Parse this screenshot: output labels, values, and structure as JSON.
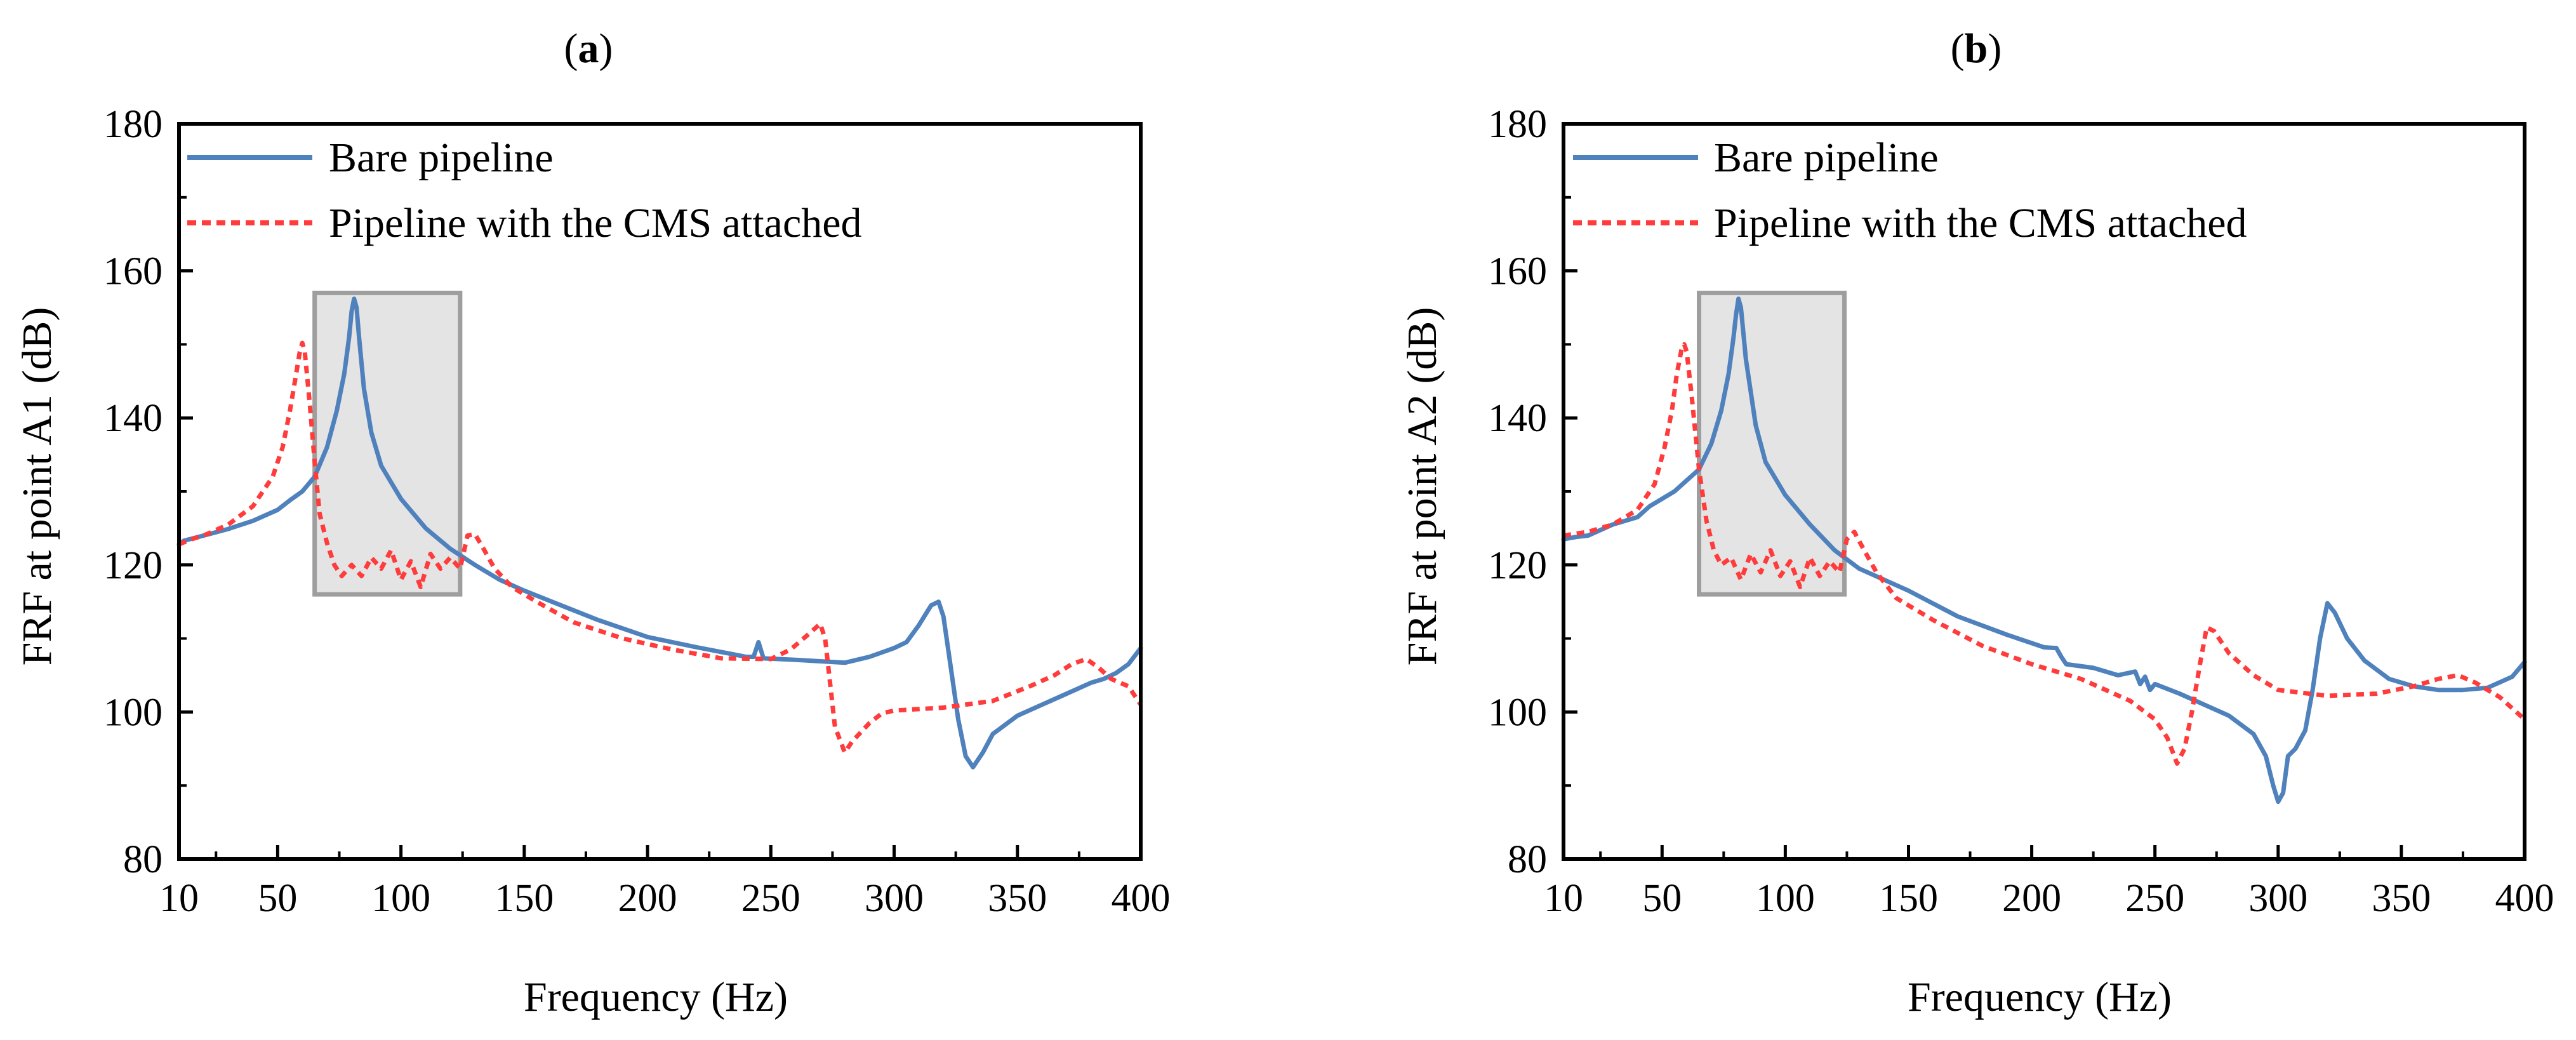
{
  "chart_data": [
    {
      "type": "line",
      "title_prefix": "(",
      "title_letter": "a",
      "title_suffix": ")",
      "xlabel": "Frequency (Hz)",
      "ylabel": "FRF at point A1 (dB)",
      "xlim": [
        10,
        400
      ],
      "ylim": [
        80,
        180
      ],
      "xticks": [
        "10",
        "50",
        "100",
        "150",
        "200",
        "250",
        "300",
        "350",
        "400"
      ],
      "yticks": [
        "80",
        "100",
        "120",
        "140",
        "160",
        "180"
      ],
      "legend_position": "top-left",
      "grid": false,
      "highlight_region": {
        "x": [
          65,
          124
        ],
        "y": [
          116,
          157
        ]
      },
      "series": [
        {
          "name": "Bare pipeline",
          "color": "#4f81bd",
          "style": "solid",
          "points": [
            [
              10,
              122.8
            ],
            [
              12,
              123.3
            ],
            [
              20,
              124
            ],
            [
              30,
              124.9
            ],
            [
              40,
              126
            ],
            [
              50,
              127.5
            ],
            [
              55,
              128.8
            ],
            [
              60,
              130
            ],
            [
              65,
              132
            ],
            [
              70,
              136
            ],
            [
              74,
              141
            ],
            [
              77,
              146
            ],
            [
              79,
              151
            ],
            [
              80,
              154.5
            ],
            [
              81,
              156.2
            ],
            [
              82,
              155
            ],
            [
              83,
              151
            ],
            [
              85,
              144
            ],
            [
              88,
              138
            ],
            [
              92,
              133.5
            ],
            [
              100,
              129
            ],
            [
              110,
              125
            ],
            [
              120,
              122.2
            ],
            [
              130,
              120
            ],
            [
              140,
              118
            ],
            [
              150,
              116.5
            ],
            [
              165,
              114.5
            ],
            [
              180,
              112.5
            ],
            [
              200,
              110.2
            ],
            [
              220,
              108.8
            ],
            [
              240,
              107.5
            ],
            [
              243,
              107.5
            ],
            [
              245,
              109.5
            ],
            [
              247,
              107.3
            ],
            [
              260,
              107.1
            ],
            [
              270,
              106.9
            ],
            [
              280,
              106.7
            ],
            [
              290,
              107.5
            ],
            [
              300,
              108.7
            ],
            [
              305,
              109.5
            ],
            [
              310,
              111.8
            ],
            [
              315,
              114.5
            ],
            [
              318,
              115
            ],
            [
              320,
              113
            ],
            [
              323,
              106
            ],
            [
              326,
              99
            ],
            [
              329,
              94
            ],
            [
              332,
              92.5
            ],
            [
              336,
              94.5
            ],
            [
              340,
              97
            ],
            [
              350,
              99.5
            ],
            [
              360,
              101
            ],
            [
              370,
              102.5
            ],
            [
              380,
              104
            ],
            [
              385,
              104.5
            ],
            [
              390,
              105.3
            ],
            [
              395,
              106.5
            ],
            [
              400,
              108.7
            ]
          ]
        },
        {
          "name": "Pipeline with the CMS attached",
          "color": "#ff3b3b",
          "style": "dashed",
          "points": [
            [
              10,
              122.8
            ],
            [
              15,
              123.5
            ],
            [
              20,
              124
            ],
            [
              30,
              125.5
            ],
            [
              40,
              128
            ],
            [
              48,
              132
            ],
            [
              52,
              136
            ],
            [
              55,
              141
            ],
            [
              57,
              145
            ],
            [
              59,
              149
            ],
            [
              60,
              150.2
            ],
            [
              61,
              149
            ],
            [
              63,
              142
            ],
            [
              65,
              134
            ],
            [
              67,
              127
            ],
            [
              70,
              123
            ],
            [
              73,
              120
            ],
            [
              76,
              118.5
            ],
            [
              80,
              120
            ],
            [
              84,
              118.5
            ],
            [
              88,
              121
            ],
            [
              92,
              119.5
            ],
            [
              96,
              122
            ],
            [
              100,
              118
            ],
            [
              104,
              120.5
            ],
            [
              108,
              117
            ],
            [
              112,
              121.5
            ],
            [
              116,
              119.5
            ],
            [
              120,
              121
            ],
            [
              124,
              119.5
            ],
            [
              127,
              124
            ],
            [
              130,
              124.2
            ],
            [
              133,
              122.5
            ],
            [
              138,
              119.5
            ],
            [
              145,
              117
            ],
            [
              155,
              115
            ],
            [
              170,
              112.2
            ],
            [
              190,
              110
            ],
            [
              210,
              108.5
            ],
            [
              230,
              107.3
            ],
            [
              250,
              107.2
            ],
            [
              258,
              108.5
            ],
            [
              265,
              110.5
            ],
            [
              270,
              112
            ],
            [
              272,
              110
            ],
            [
              276,
              98
            ],
            [
              280,
              94.5
            ],
            [
              283,
              96
            ],
            [
              290,
              98.5
            ],
            [
              295,
              99.8
            ],
            [
              300,
              100.2
            ],
            [
              320,
              100.6
            ],
            [
              340,
              101.5
            ],
            [
              355,
              103.5
            ],
            [
              365,
              105
            ],
            [
              372,
              106.5
            ],
            [
              378,
              107.2
            ],
            [
              383,
              106
            ],
            [
              388,
              104.5
            ],
            [
              395,
              103.5
            ],
            [
              400,
              101
            ]
          ]
        }
      ]
    },
    {
      "type": "line",
      "title_prefix": "(",
      "title_letter": "b",
      "title_suffix": ")",
      "xlabel": "Frequency (Hz)",
      "ylabel": "FRF at point A2 (dB)",
      "xlim": [
        10,
        400
      ],
      "ylim": [
        80,
        180
      ],
      "xticks": [
        "10",
        "50",
        "100",
        "150",
        "200",
        "250",
        "300",
        "350",
        "400"
      ],
      "yticks": [
        "80",
        "100",
        "120",
        "140",
        "160",
        "180"
      ],
      "legend_position": "top-left",
      "grid": false,
      "highlight_region": {
        "x": [
          65,
          124
        ],
        "y": [
          116,
          157
        ]
      },
      "series": [
        {
          "name": "Bare pipeline",
          "color": "#4f81bd",
          "style": "solid",
          "points": [
            [
              10,
              123.5
            ],
            [
              15,
              123.8
            ],
            [
              20,
              124
            ],
            [
              30,
              125.5
            ],
            [
              40,
              126.5
            ],
            [
              45,
              128
            ],
            [
              50,
              129
            ],
            [
              55,
              130
            ],
            [
              60,
              131.5
            ],
            [
              65,
              133
            ],
            [
              70,
              136.5
            ],
            [
              74,
              141
            ],
            [
              77,
              146
            ],
            [
              79,
              151
            ],
            [
              80,
              154
            ],
            [
              81,
              156.2
            ],
            [
              82,
              155
            ],
            [
              84,
              148
            ],
            [
              88,
              139
            ],
            [
              92,
              134
            ],
            [
              100,
              129.5
            ],
            [
              110,
              125.5
            ],
            [
              120,
              122
            ],
            [
              130,
              119.5
            ],
            [
              150,
              116.5
            ],
            [
              170,
              113
            ],
            [
              190,
              110.5
            ],
            [
              205,
              108.8
            ],
            [
              210,
              108.7
            ],
            [
              212,
              107.5
            ],
            [
              214,
              106.5
            ],
            [
              225,
              106
            ],
            [
              235,
              105
            ],
            [
              242,
              105.5
            ],
            [
              244,
              103.8
            ],
            [
              246,
              104.8
            ],
            [
              248,
              103
            ],
            [
              250,
              103.8
            ],
            [
              260,
              102.5
            ],
            [
              270,
              101
            ],
            [
              280,
              99.5
            ],
            [
              290,
              97
            ],
            [
              295,
              94
            ],
            [
              298,
              90
            ],
            [
              300,
              87.8
            ],
            [
              302,
              89
            ],
            [
              304,
              94
            ],
            [
              307,
              95
            ],
            [
              311,
              97.5
            ],
            [
              314,
              103
            ],
            [
              317,
              110
            ],
            [
              320,
              114.8
            ],
            [
              323,
              113.5
            ],
            [
              328,
              110
            ],
            [
              335,
              107
            ],
            [
              345,
              104.5
            ],
            [
              355,
              103.5
            ],
            [
              365,
              103
            ],
            [
              375,
              103
            ],
            [
              385,
              103.3
            ],
            [
              395,
              104.8
            ],
            [
              400,
              106.8
            ]
          ]
        },
        {
          "name": "Pipeline with the CMS attached",
          "color": "#ff3b3b",
          "style": "dashed",
          "points": [
            [
              10,
              124
            ],
            [
              20,
              124.5
            ],
            [
              30,
              125.5
            ],
            [
              40,
              127.5
            ],
            [
              47,
              131
            ],
            [
              51,
              136
            ],
            [
              54,
              141
            ],
            [
              56,
              146
            ],
            [
              58,
              149.5
            ],
            [
              59,
              150
            ],
            [
              60,
              149
            ],
            [
              62,
              143
            ],
            [
              65,
              133
            ],
            [
              68,
              126
            ],
            [
              71,
              122
            ],
            [
              74,
              120
            ],
            [
              78,
              121
            ],
            [
              82,
              118
            ],
            [
              86,
              121.5
            ],
            [
              90,
              119
            ],
            [
              94,
              122
            ],
            [
              98,
              118.5
            ],
            [
              102,
              120.5
            ],
            [
              106,
              117
            ],
            [
              110,
              121
            ],
            [
              114,
              118.5
            ],
            [
              118,
              120.5
            ],
            [
              122,
              119
            ],
            [
              125,
              123.5
            ],
            [
              128,
              124.5
            ],
            [
              132,
              122
            ],
            [
              137,
              119
            ],
            [
              145,
              115.5
            ],
            [
              160,
              112.5
            ],
            [
              180,
              109
            ],
            [
              200,
              106.5
            ],
            [
              220,
              104.5
            ],
            [
              240,
              101.5
            ],
            [
              250,
              99
            ],
            [
              255,
              96.5
            ],
            [
              259,
              93
            ],
            [
              262,
              95
            ],
            [
              265,
              100
            ],
            [
              268,
              106
            ],
            [
              271,
              111.5
            ],
            [
              274,
              111
            ],
            [
              280,
              108
            ],
            [
              290,
              105
            ],
            [
              300,
              103
            ],
            [
              320,
              102.2
            ],
            [
              340,
              102.5
            ],
            [
              355,
              103.5
            ],
            [
              365,
              104.5
            ],
            [
              373,
              105
            ],
            [
              380,
              104
            ],
            [
              390,
              102
            ],
            [
              395,
              100.5
            ],
            [
              400,
              99
            ]
          ]
        }
      ]
    }
  ]
}
